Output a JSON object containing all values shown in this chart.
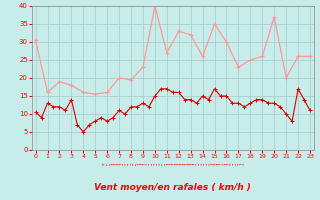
{
  "xlabel": "Vent moyen/en rafales ( km/h )",
  "background_color": "#c8ecea",
  "grid_color": "#a0ccc8",
  "line_color_light": "#ff9999",
  "line_color_dark": "#dd0000",
  "xlim": [
    -0.3,
    23.3
  ],
  "ylim": [
    0,
    40
  ],
  "yticks": [
    0,
    5,
    10,
    15,
    20,
    25,
    30,
    35,
    40
  ],
  "xticks": [
    0,
    1,
    2,
    3,
    4,
    5,
    6,
    7,
    8,
    9,
    10,
    11,
    12,
    13,
    14,
    15,
    16,
    17,
    18,
    19,
    20,
    21,
    22,
    23
  ],
  "avg_data_x": [
    0,
    1,
    2,
    3,
    4,
    5,
    6,
    7,
    8,
    9,
    10,
    11,
    12,
    13,
    14,
    15,
    16,
    17,
    18,
    19,
    20,
    21,
    22,
    23
  ],
  "avg_data_y": [
    30.5,
    16,
    19,
    18,
    16,
    15.5,
    16,
    20,
    19.5,
    23,
    40,
    27,
    33,
    32,
    26,
    35,
    30,
    23,
    25,
    26,
    37,
    20,
    26,
    26
  ],
  "gust_data_x": [
    0.0,
    0.5,
    1.0,
    1.5,
    2.0,
    2.5,
    3.0,
    3.5,
    4.0,
    4.5,
    5.0,
    5.5,
    6.0,
    6.5,
    7.0,
    7.5,
    8.0,
    8.5,
    9.0,
    9.5,
    10.0,
    10.5,
    11.0,
    11.5,
    12.0,
    12.5,
    13.0,
    13.5,
    14.0,
    14.5,
    15.0,
    15.5,
    16.0,
    16.5,
    17.0,
    17.5,
    18.0,
    18.5,
    19.0,
    19.5,
    20.0,
    20.5,
    21.0,
    21.5,
    22.0,
    22.5,
    23.0
  ],
  "gust_data_y": [
    10.5,
    9,
    13,
    12,
    12,
    11,
    14,
    7,
    5,
    7,
    8,
    9,
    8,
    9,
    11,
    10,
    12,
    12,
    13,
    12,
    15,
    17,
    17,
    16,
    16,
    14,
    14,
    13,
    15,
    14,
    17,
    15,
    15,
    13,
    13,
    12,
    13,
    14,
    14,
    13,
    13,
    12,
    10,
    8,
    17,
    14,
    11
  ]
}
